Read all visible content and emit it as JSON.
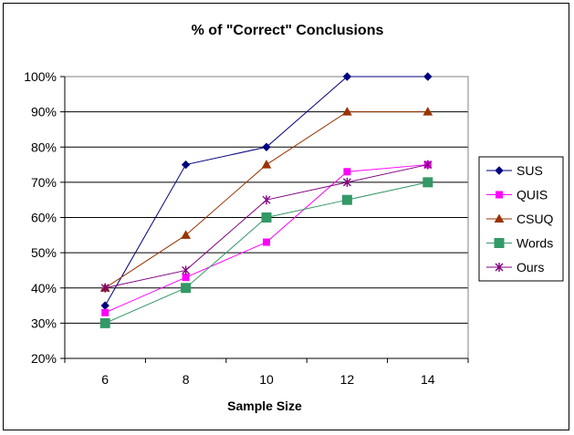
{
  "chart_data": {
    "type": "line",
    "title": "% of \"Correct\" Conclusions",
    "xlabel": "Sample Size",
    "ylabel": "",
    "x": [
      6,
      8,
      10,
      12,
      14
    ],
    "x_tick_labels": [
      "6",
      "8",
      "10",
      "12",
      "14"
    ],
    "y_tick_labels": [
      "20%",
      "30%",
      "40%",
      "50%",
      "60%",
      "70%",
      "80%",
      "90%",
      "100%"
    ],
    "ylim": [
      20,
      100
    ],
    "grid": "horizontal",
    "legend_position": "right",
    "series": [
      {
        "name": "SUS",
        "color": "#000080",
        "marker": "diamond",
        "values": [
          35,
          75,
          80,
          100,
          100
        ]
      },
      {
        "name": "QUIS",
        "color": "#ff00ff",
        "marker": "square",
        "values": [
          33,
          43,
          53,
          73,
          75
        ]
      },
      {
        "name": "CSUQ",
        "color": "#993300",
        "marker": "triangle",
        "values": [
          40,
          55,
          75,
          90,
          90
        ]
      },
      {
        "name": "Words",
        "color": "#339966",
        "marker": "square-lg",
        "values": [
          30,
          40,
          60,
          65,
          70
        ]
      },
      {
        "name": "Ours",
        "color": "#800080",
        "marker": "asterisk",
        "values": [
          40,
          45,
          65,
          70,
          75
        ]
      }
    ]
  }
}
